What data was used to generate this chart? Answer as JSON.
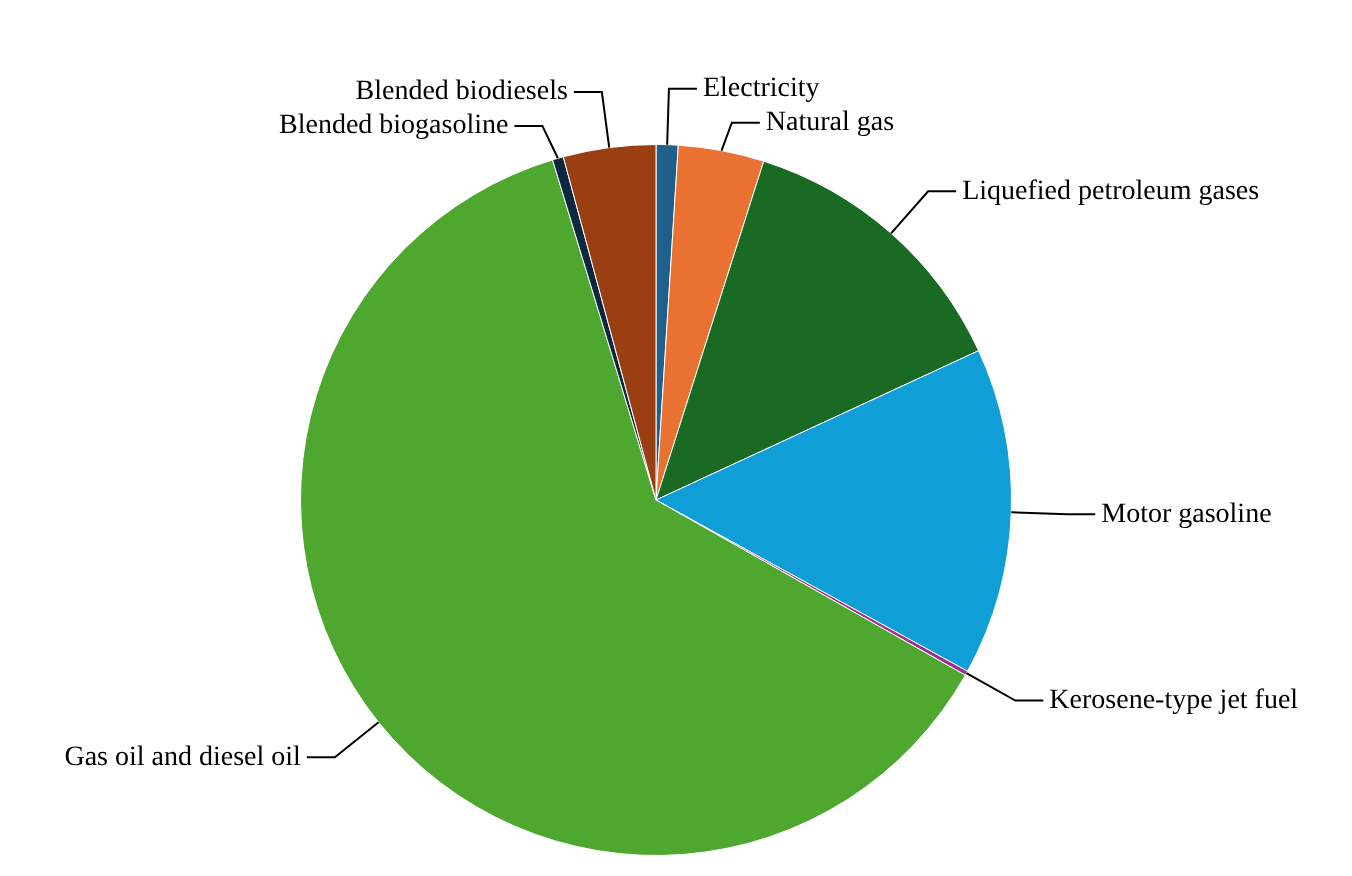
{
  "chart_data": {
    "type": "pie",
    "categories": [
      "Electricity",
      "Natural gas",
      "Liquefied petroleum gases",
      "Motor gasoline",
      "Kerosene-type jet fuel",
      "Gas oil and diesel oil",
      "Blended biogasoline",
      "Blended biodiesels"
    ],
    "values": [
      1,
      3.9,
      13.2,
      14.9,
      0.2,
      62.1,
      0.5,
      4.2
    ],
    "colors": [
      "#1f5f8b",
      "#e97132",
      "#196b24",
      "#0f9ed5",
      "#a02b93",
      "#4ea72e",
      "#0e2841",
      "#9a3f12"
    ],
    "legend": false
  }
}
